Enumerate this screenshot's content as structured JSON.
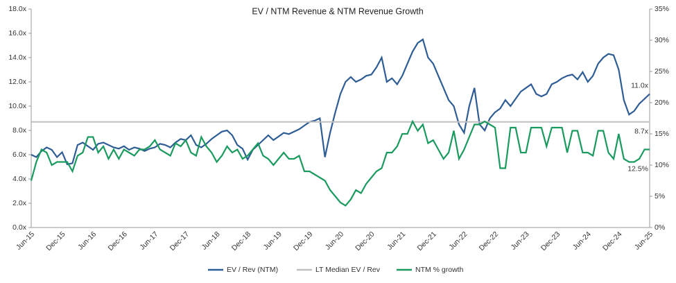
{
  "chart_data": {
    "type": "line",
    "title": "EV / NTM Revenue & NTM Revenue Growth",
    "categories": [
      "Jun-15",
      null,
      null,
      null,
      null,
      null,
      "Dec-15",
      null,
      null,
      null,
      null,
      null,
      "Jun-16",
      null,
      null,
      null,
      null,
      null,
      "Dec-16",
      null,
      null,
      null,
      null,
      null,
      "Jun-17",
      null,
      null,
      null,
      null,
      null,
      "Dec-17",
      null,
      null,
      null,
      null,
      null,
      "Jun-18",
      null,
      null,
      null,
      null,
      null,
      "Dec-18",
      null,
      null,
      null,
      null,
      null,
      "Jun-19",
      null,
      null,
      null,
      null,
      null,
      "Dec-19",
      null,
      null,
      null,
      null,
      null,
      "Jun-20",
      null,
      null,
      null,
      null,
      null,
      "Dec-20",
      null,
      null,
      null,
      null,
      null,
      "Jun-21",
      null,
      null,
      null,
      null,
      null,
      "Dec-21",
      null,
      null,
      null,
      null,
      null,
      "Jun-22",
      null,
      null,
      null,
      null,
      null,
      "Dec-22",
      null,
      null,
      null,
      null,
      null,
      "Jun-23",
      null,
      null,
      null,
      null,
      null,
      "Dec-23",
      null,
      null,
      null,
      null,
      null,
      "Jun-24",
      null,
      null,
      null,
      null,
      null,
      "Dec-24",
      null,
      null,
      null,
      null,
      null,
      "Jun-25"
    ],
    "series": [
      {
        "name": "EV / Rev (NTM)",
        "color": "#2e5c94",
        "axis": "y",
        "values": [
          6.0,
          5.8,
          6.3,
          6.6,
          6.4,
          5.8,
          6.2,
          5.2,
          5.3,
          6.8,
          7.0,
          6.7,
          6.4,
          6.9,
          7.0,
          6.8,
          6.6,
          6.5,
          6.7,
          6.4,
          6.6,
          6.5,
          6.3,
          6.5,
          6.6,
          6.9,
          6.8,
          6.6,
          7.0,
          7.3,
          7.2,
          7.6,
          6.8,
          6.6,
          6.9,
          7.3,
          7.6,
          7.9,
          8.0,
          7.6,
          6.8,
          6.5,
          5.6,
          6.4,
          6.8,
          7.2,
          7.6,
          7.2,
          7.5,
          7.8,
          7.7,
          7.9,
          8.1,
          8.4,
          8.7,
          8.8,
          9.0,
          5.8,
          7.8,
          9.5,
          11.0,
          12.0,
          12.4,
          12.0,
          12.2,
          12.5,
          12.6,
          13.2,
          14.0,
          12.0,
          12.3,
          11.8,
          12.5,
          13.5,
          14.5,
          15.2,
          15.5,
          14.0,
          13.5,
          12.5,
          11.5,
          10.5,
          10.0,
          8.5,
          7.8,
          10.0,
          11.5,
          8.5,
          8.0,
          9.0,
          9.5,
          9.8,
          10.5,
          10.0,
          10.6,
          11.2,
          11.5,
          11.8,
          11.0,
          10.8,
          11.0,
          11.8,
          12.0,
          12.3,
          12.5,
          12.6,
          12.2,
          12.8,
          12.0,
          12.5,
          13.5,
          14.0,
          14.3,
          14.2,
          13.0,
          10.5,
          9.3,
          9.6,
          10.2,
          10.6,
          11.0
        ],
        "value_labels": [
          null,
          null,
          null,
          null,
          null,
          null,
          null,
          null,
          null,
          null,
          null,
          null,
          null,
          null,
          null,
          null,
          null,
          null,
          null,
          null,
          null,
          null,
          null,
          null,
          null,
          null,
          null,
          null,
          null,
          null,
          null,
          null,
          null,
          null,
          null,
          null,
          null,
          null,
          null,
          null,
          null,
          null,
          null,
          null,
          null,
          null,
          null,
          null,
          null,
          null,
          null,
          null,
          null,
          null,
          null,
          null,
          null,
          null,
          null,
          null,
          null,
          null,
          null,
          null,
          null,
          null,
          null,
          null,
          null,
          null,
          null,
          null,
          null,
          null,
          null,
          null,
          null,
          null,
          null,
          null,
          null,
          null,
          null,
          null,
          null,
          null,
          null,
          null,
          null,
          null,
          null,
          null,
          null,
          null,
          null,
          null,
          null,
          null,
          null,
          null,
          null,
          null,
          null,
          null,
          null,
          null,
          null,
          null,
          null,
          null,
          null,
          null,
          null,
          null,
          null,
          null,
          null,
          null,
          null,
          null,
          "11.0x"
        ]
      },
      {
        "name": "LT Median EV / Rev",
        "color": "#bfbfbf",
        "axis": "y",
        "values": [
          8.7,
          8.7,
          8.7,
          8.7,
          8.7,
          8.7,
          8.7,
          8.7,
          8.7,
          8.7,
          8.7,
          8.7,
          8.7,
          8.7,
          8.7,
          8.7,
          8.7,
          8.7,
          8.7,
          8.7,
          8.7,
          8.7,
          8.7,
          8.7,
          8.7,
          8.7,
          8.7,
          8.7,
          8.7,
          8.7,
          8.7,
          8.7,
          8.7,
          8.7,
          8.7,
          8.7,
          8.7,
          8.7,
          8.7,
          8.7,
          8.7,
          8.7,
          8.7,
          8.7,
          8.7,
          8.7,
          8.7,
          8.7,
          8.7,
          8.7,
          8.7,
          8.7,
          8.7,
          8.7,
          8.7,
          8.7,
          8.7,
          8.7,
          8.7,
          8.7,
          8.7,
          8.7,
          8.7,
          8.7,
          8.7,
          8.7,
          8.7,
          8.7,
          8.7,
          8.7,
          8.7,
          8.7,
          8.7,
          8.7,
          8.7,
          8.7,
          8.7,
          8.7,
          8.7,
          8.7,
          8.7,
          8.7,
          8.7,
          8.7,
          8.7,
          8.7,
          8.7,
          8.7,
          8.7,
          8.7,
          8.7,
          8.7,
          8.7,
          8.7,
          8.7,
          8.7,
          8.7,
          8.7,
          8.7,
          8.7,
          8.7,
          8.7,
          8.7,
          8.7,
          8.7,
          8.7,
          8.7,
          8.7,
          8.7,
          8.7,
          8.7,
          8.7,
          8.7,
          8.7,
          8.7,
          8.7,
          8.7,
          8.7,
          8.7,
          8.7,
          8.7
        ],
        "value_labels": [
          null,
          null,
          null,
          null,
          null,
          null,
          null,
          null,
          null,
          null,
          null,
          null,
          null,
          null,
          null,
          null,
          null,
          null,
          null,
          null,
          null,
          null,
          null,
          null,
          null,
          null,
          null,
          null,
          null,
          null,
          null,
          null,
          null,
          null,
          null,
          null,
          null,
          null,
          null,
          null,
          null,
          null,
          null,
          null,
          null,
          null,
          null,
          null,
          null,
          null,
          null,
          null,
          null,
          null,
          null,
          null,
          null,
          null,
          null,
          null,
          null,
          null,
          null,
          null,
          null,
          null,
          null,
          null,
          null,
          null,
          null,
          null,
          null,
          null,
          null,
          null,
          null,
          null,
          null,
          null,
          null,
          null,
          null,
          null,
          null,
          null,
          null,
          null,
          null,
          null,
          null,
          null,
          null,
          null,
          null,
          null,
          null,
          null,
          null,
          null,
          null,
          null,
          null,
          null,
          null,
          null,
          null,
          null,
          null,
          null,
          null,
          null,
          null,
          null,
          null,
          null,
          null,
          null,
          null,
          null,
          "8.7x"
        ]
      },
      {
        "name": "NTM % growth",
        "color": "#1a9a5e",
        "axis": "y2",
        "values": [
          7.5,
          10.5,
          12.5,
          12,
          10,
          10.5,
          10.5,
          10.5,
          9,
          11.5,
          12,
          14.5,
          14.5,
          12,
          13,
          11,
          12.5,
          11,
          12.5,
          12,
          11.5,
          12.5,
          12.5,
          13,
          14,
          12.5,
          12,
          11.5,
          13.5,
          13,
          14,
          12,
          11.5,
          14.5,
          13,
          12,
          10.5,
          11.5,
          13,
          12,
          12.5,
          11,
          11.5,
          12.5,
          13.5,
          11.5,
          11,
          10,
          11,
          12,
          11,
          11,
          11.5,
          9,
          9,
          8.5,
          8,
          7.5,
          6,
          5,
          4,
          3.5,
          4.5,
          6,
          5.5,
          7,
          8,
          9,
          9.5,
          12,
          12,
          13,
          15,
          15,
          17,
          15.5,
          16.5,
          13.5,
          14,
          12.5,
          11,
          12,
          15.5,
          11,
          12.5,
          14.5,
          16.5,
          16.5,
          17,
          16.5,
          16,
          9.5,
          9.5,
          16,
          16,
          12,
          12,
          16,
          16,
          16,
          13,
          16,
          16,
          16,
          12,
          15.5,
          15.5,
          12,
          12,
          11.5,
          15.5,
          15.5,
          12,
          11,
          15,
          11,
          10.5,
          10.5,
          11,
          12.5,
          12.5
        ],
        "value_labels": [
          null,
          null,
          null,
          null,
          null,
          null,
          null,
          null,
          null,
          null,
          null,
          null,
          null,
          null,
          null,
          null,
          null,
          null,
          null,
          null,
          null,
          null,
          null,
          null,
          null,
          null,
          null,
          null,
          null,
          null,
          null,
          null,
          null,
          null,
          null,
          null,
          null,
          null,
          null,
          null,
          null,
          null,
          null,
          null,
          null,
          null,
          null,
          null,
          null,
          null,
          null,
          null,
          null,
          null,
          null,
          null,
          null,
          null,
          null,
          null,
          null,
          null,
          null,
          null,
          null,
          null,
          null,
          null,
          null,
          null,
          null,
          null,
          null,
          null,
          null,
          null,
          null,
          null,
          null,
          null,
          null,
          null,
          null,
          null,
          null,
          null,
          null,
          null,
          null,
          null,
          null,
          null,
          null,
          null,
          null,
          null,
          null,
          null,
          null,
          null,
          null,
          null,
          null,
          null,
          null,
          null,
          null,
          null,
          null,
          null,
          null,
          null,
          null,
          null,
          null,
          null,
          null,
          null,
          null,
          null,
          "12.5%"
        ]
      }
    ],
    "ylim": [
      0,
      18
    ],
    "yticks": [
      {
        "value": 0,
        "label": "0.0x"
      },
      {
        "value": 2,
        "label": "2.0x"
      },
      {
        "value": 4,
        "label": "4.0x"
      },
      {
        "value": 6,
        "label": "6.0x"
      },
      {
        "value": 8,
        "label": "8.0x"
      },
      {
        "value": 10,
        "label": "10.0x"
      },
      {
        "value": 12,
        "label": "12.0x"
      },
      {
        "value": 14,
        "label": "14.0x"
      },
      {
        "value": 16,
        "label": "16.0x"
      },
      {
        "value": 18,
        "label": "18.0x"
      }
    ],
    "y2lim": [
      0,
      35
    ],
    "y2ticks": [
      {
        "value": 0,
        "label": "0%"
      },
      {
        "value": 5,
        "label": "5%"
      },
      {
        "value": 10,
        "label": "10%"
      },
      {
        "value": 15,
        "label": "15%"
      },
      {
        "value": 20,
        "label": "20%"
      },
      {
        "value": 25,
        "label": "25%"
      },
      {
        "value": 30,
        "label": "30%"
      },
      {
        "value": 35,
        "label": "35%"
      }
    ],
    "grid": false,
    "legend": "bottom"
  }
}
